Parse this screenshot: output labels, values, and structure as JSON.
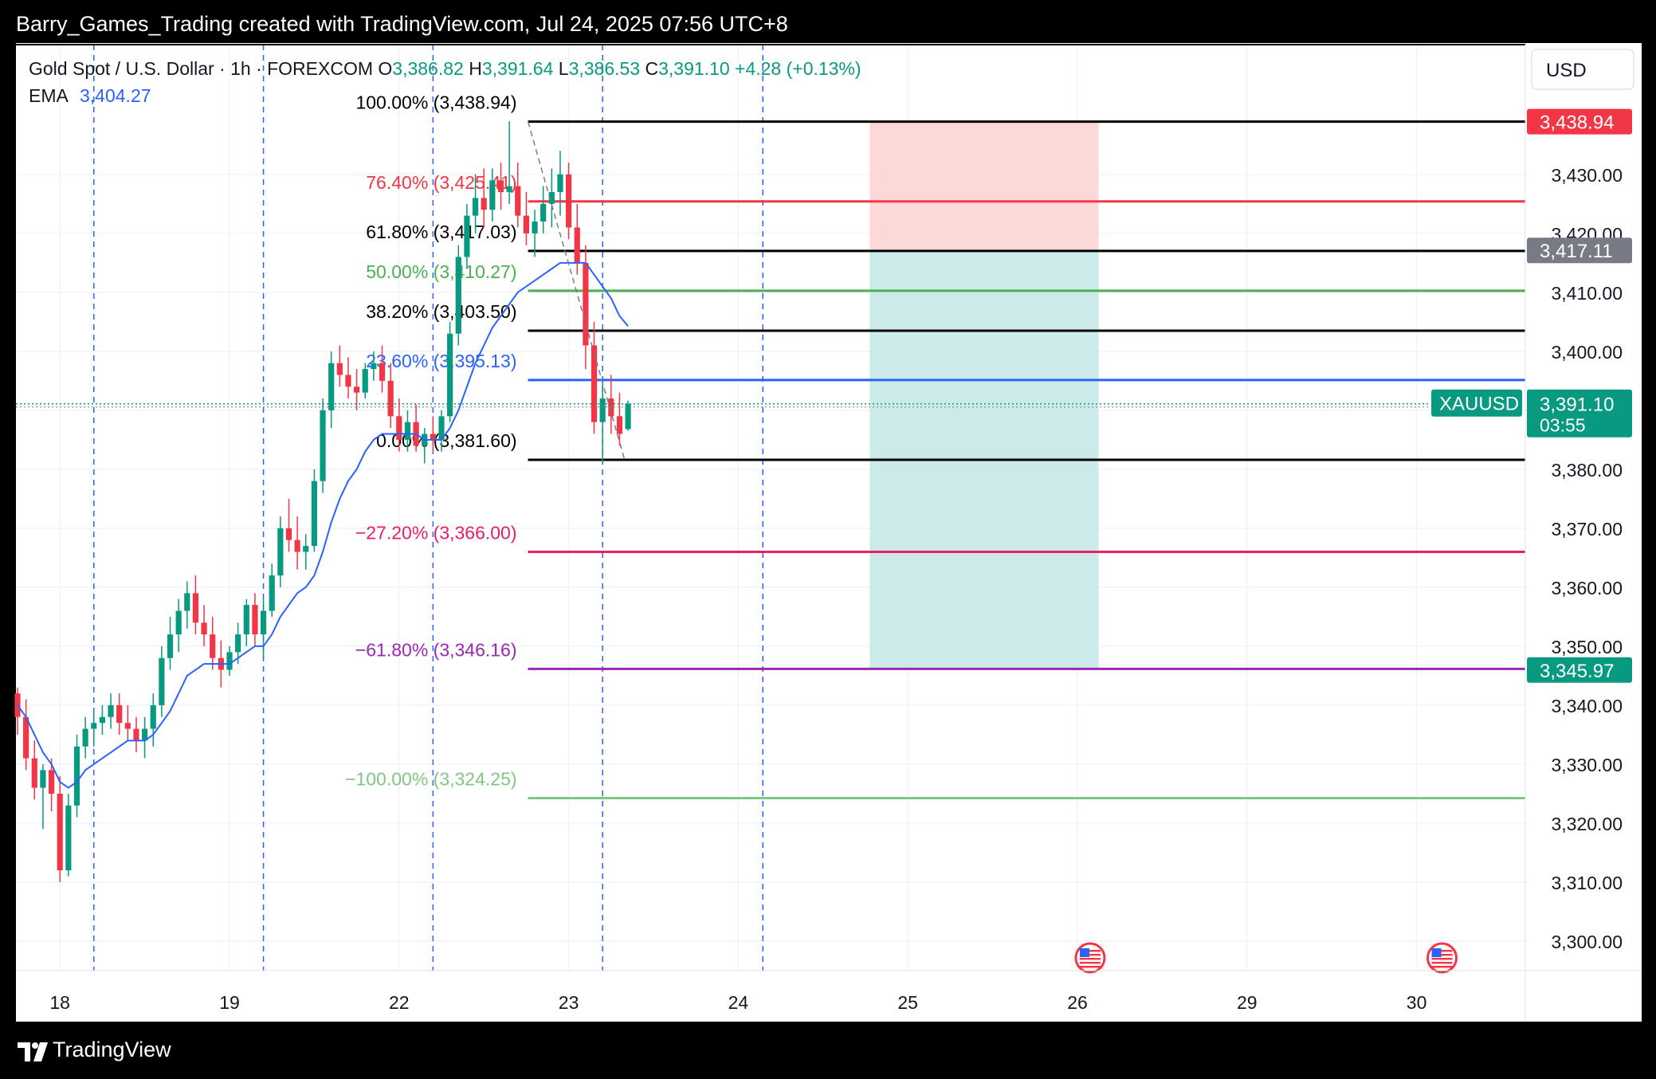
{
  "header": {
    "title": "Barry_Games_Trading created with TradingView.com, Jul 24, 2025 07:56 UTC+8"
  },
  "footer": {
    "brand": "TradingView"
  },
  "colors": {
    "up": "#089981",
    "down": "#f23645",
    "ema": "#2962ff",
    "grid": "#f0f3fa",
    "stop_zone": "#fdd8d8",
    "target_zone": "#cbeae8"
  },
  "chart_data": {
    "type": "candlestick",
    "symbol": "XAUUSD",
    "legend": {
      "title": "Gold Spot / U.S. Dollar · 1h · FOREXCOM",
      "open_label": "O",
      "open": "3,386.82",
      "high_label": "H",
      "high": "3,391.64",
      "low_label": "L",
      "low": "3,386.53",
      "close_label": "C",
      "close": "3,391.10",
      "change": "+4.28 (+0.13%)",
      "ema_label": "EMA",
      "ema_value": "3,404.27"
    },
    "currency": "USD",
    "ylim": [
      3295,
      3452
    ],
    "y_ticks": [
      3300,
      3310,
      3320,
      3330,
      3340,
      3350,
      3360,
      3370,
      3380,
      3390,
      3400,
      3410,
      3420,
      3430
    ],
    "y_tick_labels": [
      "3,300.00",
      "3,310.00",
      "3,320.00",
      "3,330.00",
      "3,340.00",
      "3,350.00",
      "3,360.00",
      "3,370.00",
      "3,380.00",
      "3,390.00",
      "3,400.00",
      "3,410.00",
      "3,420.00",
      "3,430.00"
    ],
    "x_ticks": [
      {
        "label": "18",
        "bar": 5
      },
      {
        "label": "19",
        "bar": 25
      },
      {
        "label": "22",
        "bar": 45
      },
      {
        "label": "23",
        "bar": 65
      },
      {
        "label": "24",
        "bar": 85
      },
      {
        "label": "25",
        "bar": 105
      },
      {
        "label": "26",
        "bar": 125
      },
      {
        "label": "29",
        "bar": 145
      },
      {
        "label": "30",
        "bar": 165
      }
    ],
    "bars_visible_from": 0,
    "bars_visible_to": 178,
    "session_breaks": [
      9,
      29,
      49,
      69,
      87.9
    ],
    "candles": [
      [
        3342,
        3343,
        3335,
        3338
      ],
      [
        3338,
        3341,
        3329,
        3331
      ],
      [
        3331,
        3334,
        3324,
        3326
      ],
      [
        3326,
        3330,
        3319,
        3329
      ],
      [
        3329,
        3331,
        3322,
        3325
      ],
      [
        3325,
        3328,
        3310,
        3312
      ],
      [
        3312,
        3325,
        3311,
        3323
      ],
      [
        3323,
        3335,
        3321,
        3333
      ],
      [
        3333,
        3338,
        3331,
        3336
      ],
      [
        3336,
        3339,
        3333,
        3337
      ],
      [
        3337,
        3340,
        3335,
        3338
      ],
      [
        3338,
        3342,
        3336,
        3340
      ],
      [
        3340,
        3342,
        3335,
        3337
      ],
      [
        3337,
        3340,
        3334,
        3336
      ],
      [
        3336,
        3338,
        3332,
        3334
      ],
      [
        3334,
        3338,
        3331,
        3336
      ],
      [
        3336,
        3342,
        3333,
        3340
      ],
      [
        3340,
        3350,
        3338,
        3348
      ],
      [
        3348,
        3355,
        3346,
        3352
      ],
      [
        3352,
        3358,
        3349,
        3356
      ],
      [
        3356,
        3361,
        3353,
        3359
      ],
      [
        3359,
        3362,
        3352,
        3354
      ],
      [
        3354,
        3357,
        3350,
        3352
      ],
      [
        3352,
        3355,
        3346,
        3348
      ],
      [
        3348,
        3351,
        3343,
        3346
      ],
      [
        3346,
        3350,
        3345,
        3349
      ],
      [
        3349,
        3354,
        3347,
        3352
      ],
      [
        3352,
        3358,
        3350,
        3357
      ],
      [
        3357,
        3359,
        3350,
        3352
      ],
      [
        3352,
        3358,
        3348,
        3356
      ],
      [
        3356,
        3364,
        3355,
        3362
      ],
      [
        3362,
        3372,
        3360,
        3370
      ],
      [
        3370,
        3375,
        3366,
        3368
      ],
      [
        3368,
        3372,
        3363,
        3366
      ],
      [
        3366,
        3369,
        3363,
        3367
      ],
      [
        3367,
        3380,
        3366,
        3378
      ],
      [
        3378,
        3392,
        3376,
        3390
      ],
      [
        3390,
        3400,
        3387,
        3398
      ],
      [
        3398,
        3401,
        3394,
        3396
      ],
      [
        3396,
        3399,
        3392,
        3394
      ],
      [
        3394,
        3397,
        3390,
        3393
      ],
      [
        3393,
        3398,
        3392,
        3397
      ],
      [
        3397,
        3400,
        3395,
        3398
      ],
      [
        3398,
        3401,
        3393,
        3395
      ],
      [
        3395,
        3398,
        3387,
        3389
      ],
      [
        3389,
        3392,
        3383,
        3385
      ],
      [
        3385,
        3390,
        3383,
        3388
      ],
      [
        3388,
        3391,
        3383,
        3384
      ],
      [
        3384,
        3387,
        3381,
        3386
      ],
      [
        3386,
        3389,
        3383,
        3385
      ],
      [
        3385,
        3390,
        3383,
        3389
      ],
      [
        3389,
        3405,
        3388,
        3403
      ],
      [
        3403,
        3418,
        3401,
        3416
      ],
      [
        3416,
        3425,
        3414,
        3423
      ],
      [
        3423,
        3430,
        3420,
        3426
      ],
      [
        3426,
        3431,
        3421,
        3424
      ],
      [
        3424,
        3431,
        3422,
        3429
      ],
      [
        3429,
        3432,
        3424,
        3427
      ],
      [
        3427,
        3439,
        3425,
        3428
      ],
      [
        3428,
        3432,
        3421,
        3423
      ],
      [
        3423,
        3427,
        3418,
        3420
      ],
      [
        3420,
        3424,
        3416,
        3422
      ],
      [
        3422,
        3428,
        3420,
        3425
      ],
      [
        3425,
        3431,
        3421,
        3427
      ],
      [
        3427,
        3434,
        3423,
        3430
      ],
      [
        3430,
        3432,
        3419,
        3421
      ],
      [
        3421,
        3425,
        3413,
        3415
      ],
      [
        3415,
        3418,
        3397,
        3401
      ],
      [
        3401,
        3405,
        3386,
        3388
      ],
      [
        3388,
        3395,
        3381,
        3392
      ],
      [
        3392,
        3396,
        3386,
        3389
      ],
      [
        3389,
        3393,
        3384,
        3386
      ],
      [
        3386.82,
        3391.64,
        3386.53,
        3391.1
      ]
    ],
    "candle_bar_index": [
      0,
      1,
      2,
      3,
      4,
      5,
      6,
      7,
      8,
      9,
      10,
      11,
      12,
      13,
      14,
      15,
      16,
      17,
      18,
      19,
      20,
      21,
      22,
      23,
      24,
      25,
      26,
      27,
      28,
      29,
      30,
      31,
      32,
      33,
      34,
      35,
      36,
      37,
      38,
      39,
      40,
      41,
      42,
      43,
      44,
      45,
      46,
      47,
      48,
      49,
      50,
      51,
      52,
      53,
      54,
      55,
      56,
      57,
      58,
      59,
      60,
      61,
      62,
      63,
      64,
      65,
      66,
      67,
      68,
      69,
      70,
      71,
      72
    ],
    "ema": [
      3340,
      3338,
      3335,
      3332,
      3330,
      3327,
      3326,
      3327,
      3329,
      3330,
      3331,
      3332,
      3333,
      3334,
      3334,
      3334,
      3335,
      3337,
      3339,
      3342,
      3345,
      3346,
      3347,
      3347,
      3347,
      3347,
      3348,
      3349,
      3350,
      3350,
      3352,
      3355,
      3357,
      3359,
      3360,
      3362,
      3366,
      3371,
      3375,
      3378,
      3380,
      3383,
      3385,
      3386,
      3386,
      3386,
      3386,
      3386,
      3385,
      3385,
      3385,
      3387,
      3390,
      3394,
      3398,
      3401,
      3404,
      3406,
      3408,
      3410,
      3411,
      3412,
      3413,
      3414,
      3415,
      3415,
      3415,
      3415,
      3413,
      3411,
      3409,
      3406,
      3404.27
    ],
    "fibonacci": [
      {
        "label": "100.00% (3,438.94)",
        "value": 3438.94,
        "color": "#000000"
      },
      {
        "label": "76.40% (3,425.41)",
        "value": 3425.41,
        "color": "#f23645"
      },
      {
        "label": "61.80% (3,417.03)",
        "value": 3417.03,
        "color": "#000000"
      },
      {
        "label": "50.00% (3,410.27)",
        "value": 3410.27,
        "color": "#4caf50"
      },
      {
        "label": "38.20% (3,403.50)",
        "value": 3403.5,
        "color": "#000000"
      },
      {
        "label": "23.60% (3,395.13)",
        "value": 3395.13,
        "color": "#2962ff"
      },
      {
        "label": "0.00% (3,381.60)",
        "value": 3381.6,
        "color": "#000000"
      },
      {
        "label": "−27.20% (3,366.00)",
        "value": 3366.0,
        "color": "#e91e63"
      },
      {
        "label": "−61.80% (3,346.16)",
        "value": 3346.16,
        "color": "#9c27b0"
      },
      {
        "label": "−100.00% (3,324.25)",
        "value": 3324.25,
        "color": "#81c784"
      }
    ],
    "fib_start_bar": 60.2,
    "position": {
      "entry": 3417.11,
      "stop": 3438.94,
      "target": 3345.97,
      "from_bar": 100.5,
      "to_bar": 127.5
    },
    "price_tags": [
      {
        "text": "3,438.94",
        "value": 3438.94,
        "bg": "#f23645"
      },
      {
        "text": "3,417.11",
        "value": 3417.11,
        "bg": "#787b86"
      },
      {
        "text": "3,345.97",
        "value": 3345.97,
        "bg": "#089981"
      }
    ],
    "last_price": {
      "symbol_tag": "XAUUSD",
      "text": "3,391.10",
      "countdown": "03:55",
      "value": 3391.1
    },
    "trend_line": {
      "from_bar": 60.2,
      "from": 3438.94,
      "to_bar": 71.6,
      "to": 3381.6
    },
    "event_flags_bar": [
      126.5,
      168
    ]
  }
}
